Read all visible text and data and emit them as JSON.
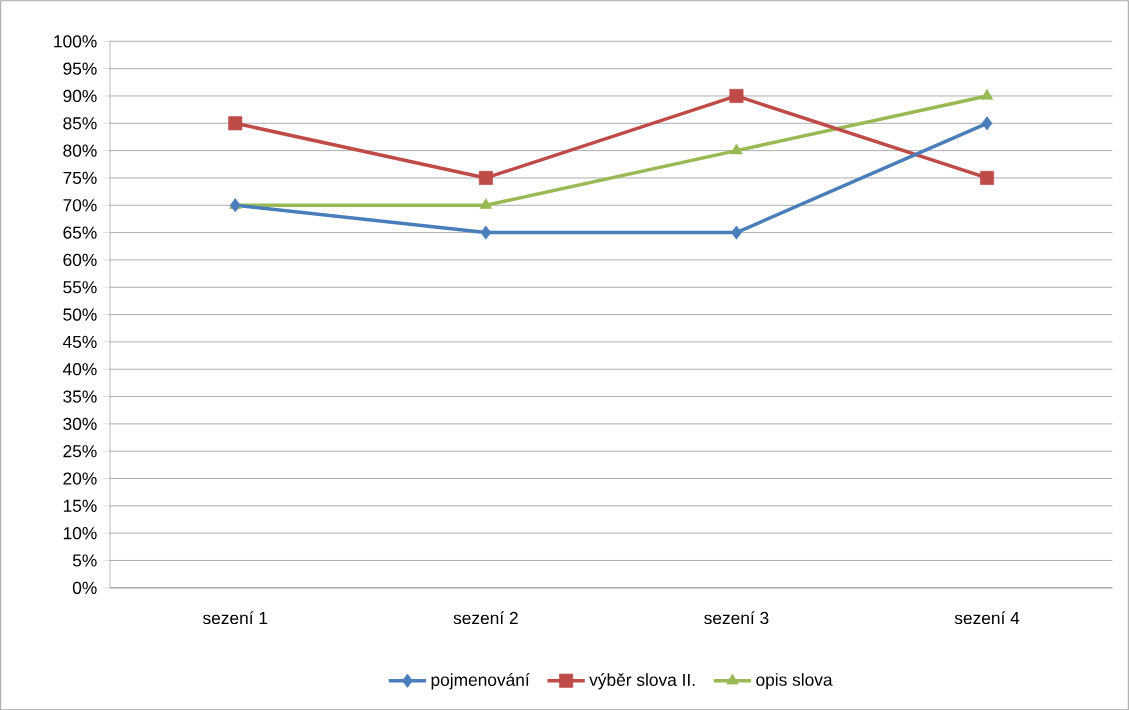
{
  "chart_data": {
    "type": "line",
    "categories": [
      "sezení 1",
      "sezení 2",
      "sezení 3",
      "sezení 4"
    ],
    "series": [
      {
        "name": "pojmenování",
        "color": "#4a7ebb",
        "marker": "diamond",
        "values": [
          70,
          65,
          65,
          85
        ]
      },
      {
        "name": "výběr slova II.",
        "color": "#be4b48",
        "marker": "square",
        "values": [
          85,
          75,
          90,
          75
        ]
      },
      {
        "name": "opis slova",
        "color": "#98b954",
        "marker": "triangle",
        "values": [
          70,
          70,
          80,
          90
        ]
      }
    ],
    "ylim": [
      0,
      100
    ],
    "yticks": [
      {
        "value": 0,
        "label": "0%"
      },
      {
        "value": 5,
        "label": "5%"
      },
      {
        "value": 10,
        "label": "10%"
      },
      {
        "value": 15,
        "label": "15%"
      },
      {
        "value": 20,
        "label": "20%"
      },
      {
        "value": 25,
        "label": "25%"
      },
      {
        "value": 30,
        "label": "30%"
      },
      {
        "value": 35,
        "label": "35%"
      },
      {
        "value": 40,
        "label": "40%"
      },
      {
        "value": 45,
        "label": "45%"
      },
      {
        "value": 50,
        "label": "50%"
      },
      {
        "value": 55,
        "label": "55%"
      },
      {
        "value": 60,
        "label": "60%"
      },
      {
        "value": 65,
        "label": "65%"
      },
      {
        "value": 70,
        "label": "70%"
      },
      {
        "value": 75,
        "label": "75%"
      },
      {
        "value": 80,
        "label": "80%"
      },
      {
        "value": 85,
        "label": "85%"
      },
      {
        "value": 90,
        "label": "90%"
      },
      {
        "value": 95,
        "label": "95%"
      },
      {
        "value": 100,
        "label": "100%"
      }
    ],
    "grid": "y",
    "legend": "bottom",
    "line_style": "solid"
  }
}
